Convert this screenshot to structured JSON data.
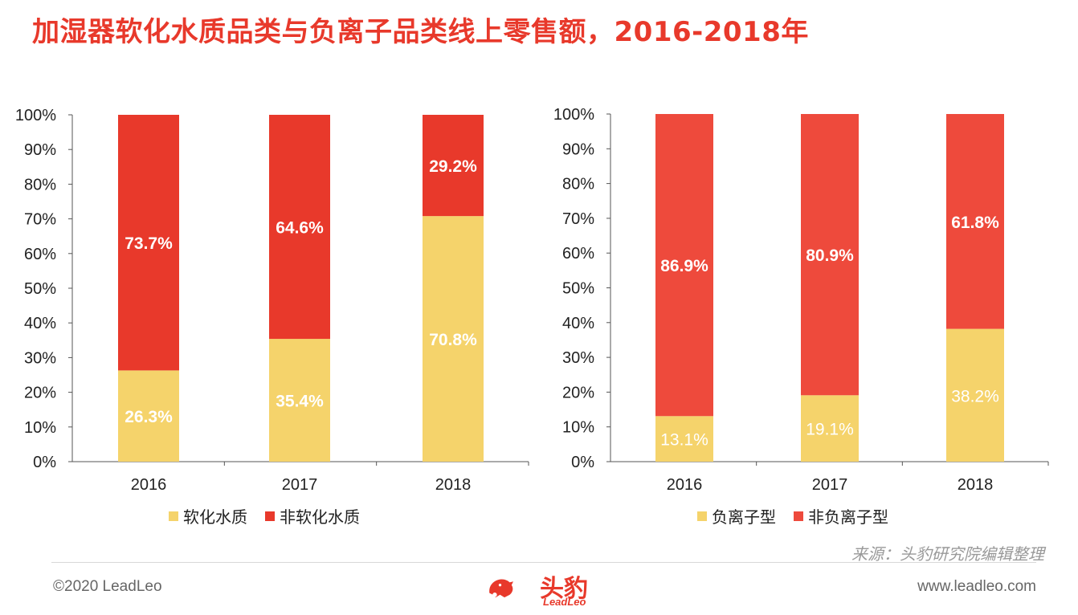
{
  "title": "加湿器软化水质品类与负离子品类线上零售额，2016-2018年",
  "source": "来源：头豹研究院编辑整理",
  "footer": {
    "copyright": "©2020 LeadLeo",
    "website": "www.leadleo.com",
    "logo_text": "头豹",
    "logo_sub": "LeadLeo"
  },
  "colors": {
    "yellow": "#F5D36B",
    "red1": "#E8392B",
    "red2": "#EE4A3C",
    "axis": "#444444",
    "title": "#E8392B"
  },
  "chart_data": [
    {
      "type": "bar",
      "stacked": true,
      "categories": [
        "2016",
        "2017",
        "2018"
      ],
      "ylim": [
        0,
        100
      ],
      "yticks": [
        "0%",
        "10%",
        "20%",
        "30%",
        "40%",
        "50%",
        "60%",
        "70%",
        "80%",
        "90%",
        "100%"
      ],
      "series": [
        {
          "name": "软化水质",
          "values": [
            26.3,
            35.4,
            70.8
          ],
          "labels": [
            "26.3%",
            "35.4%",
            "70.8%"
          ],
          "color": "#F5D36B"
        },
        {
          "name": "非软化水质",
          "values": [
            73.7,
            64.6,
            29.2
          ],
          "labels": [
            "73.7%",
            "64.6%",
            "29.2%"
          ],
          "color": "#E8392B"
        }
      ],
      "legend": "bottom",
      "label_bold": true
    },
    {
      "type": "bar",
      "stacked": true,
      "categories": [
        "2016",
        "2017",
        "2018"
      ],
      "ylim": [
        0,
        100
      ],
      "yticks": [
        "0%",
        "10%",
        "20%",
        "30%",
        "40%",
        "50%",
        "60%",
        "70%",
        "80%",
        "90%",
        "100%"
      ],
      "series": [
        {
          "name": "负离子型",
          "values": [
            13.1,
            19.1,
            38.2
          ],
          "labels": [
            "13.1%",
            "19.1%",
            "38.2%"
          ],
          "color": "#F5D36B"
        },
        {
          "name": "非负离子型",
          "values": [
            86.9,
            80.9,
            61.8
          ],
          "labels": [
            "86.9%",
            "80.9%",
            "61.8%"
          ],
          "color": "#EE4A3C"
        }
      ],
      "legend": "bottom",
      "label_bold_series": [
        false,
        true
      ]
    }
  ]
}
